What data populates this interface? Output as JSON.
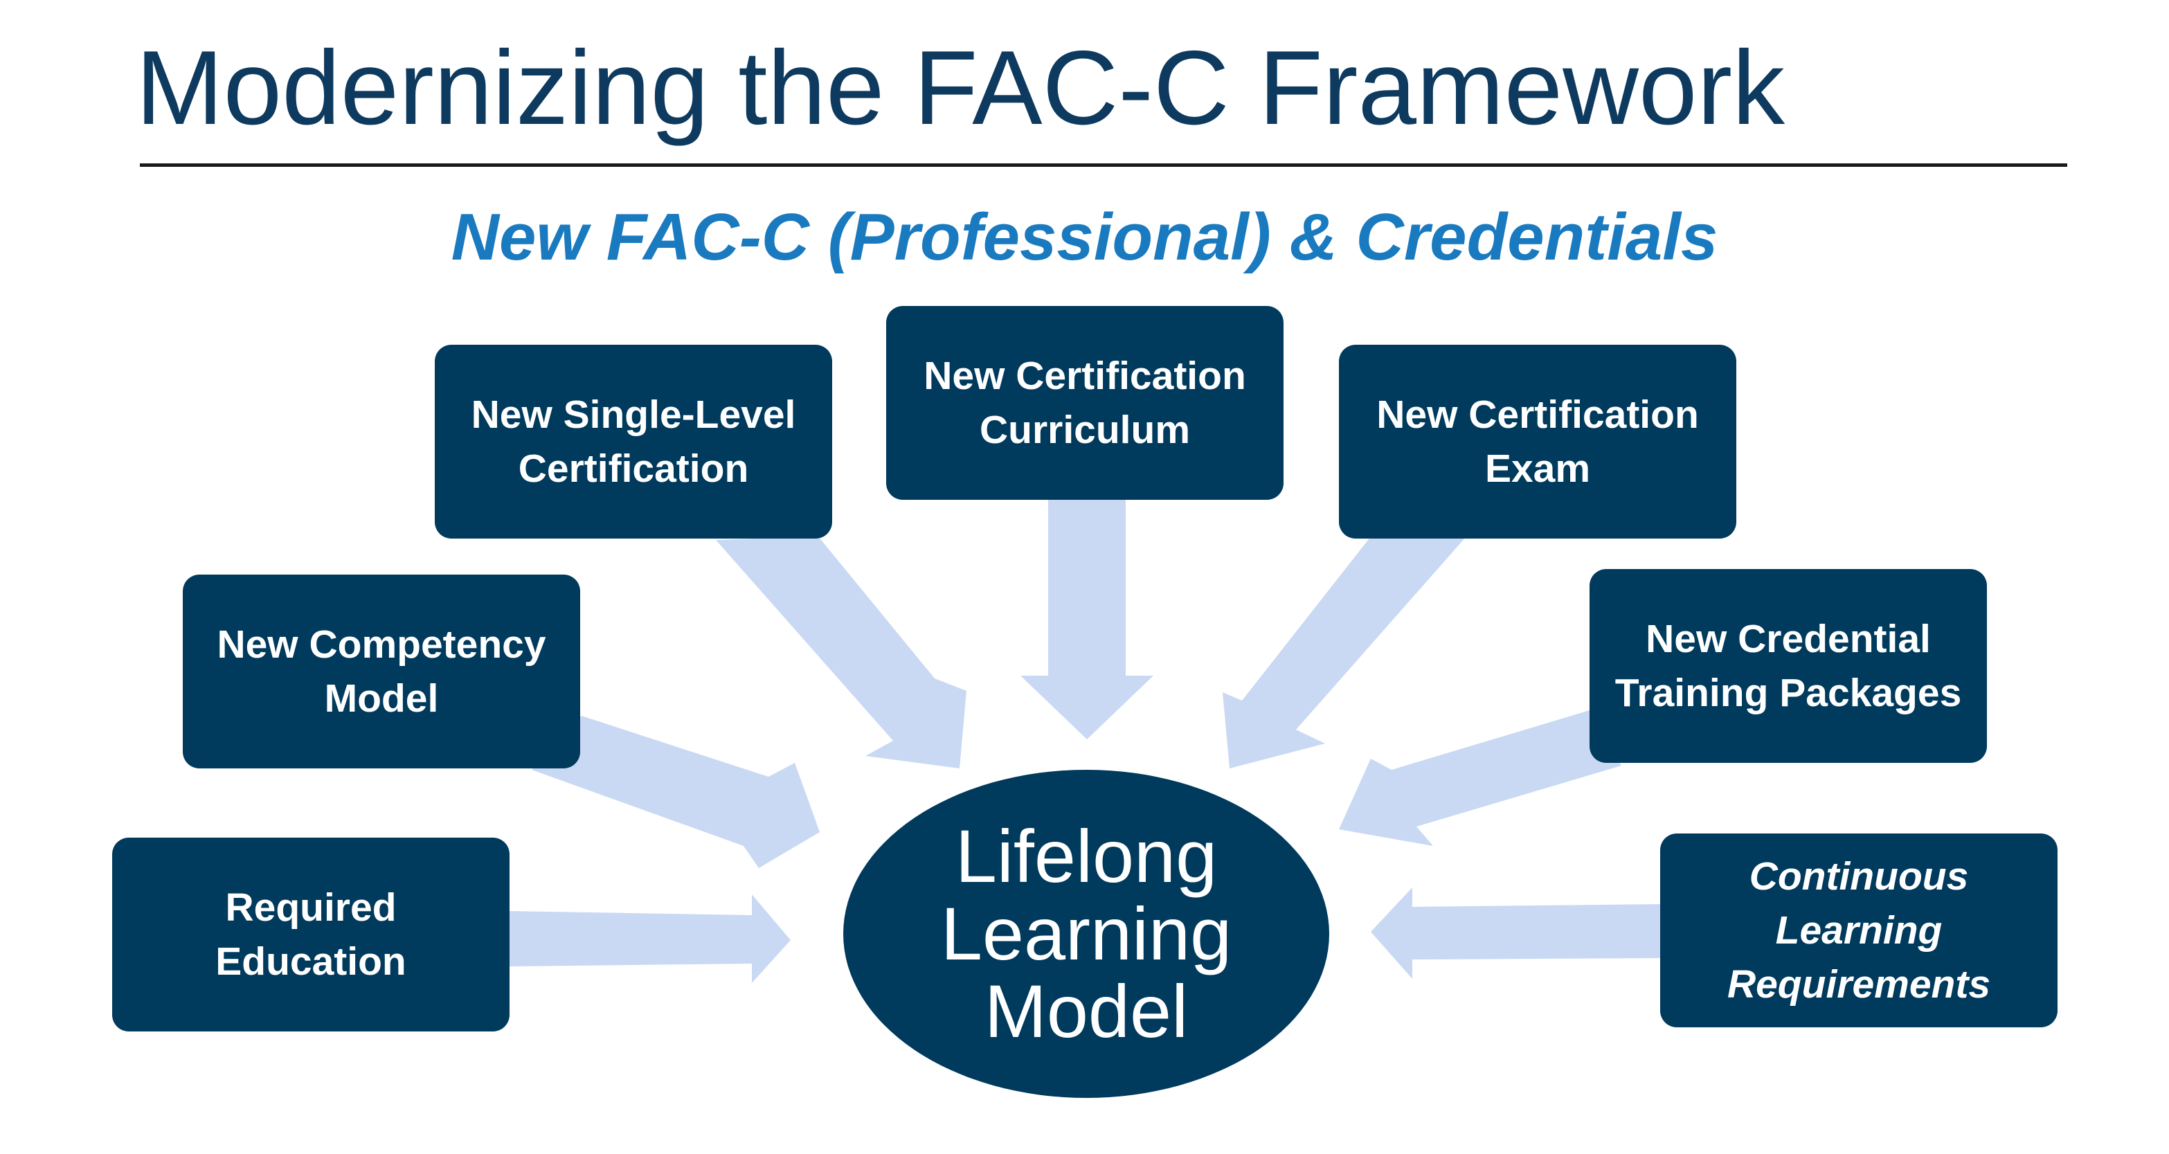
{
  "header": {
    "title": "Modernizing the FAC-C Framework",
    "subtitle": "New FAC-C (Professional) & Credentials"
  },
  "diagram": {
    "center": "Lifelong\nLearning\nModel",
    "nodes": [
      {
        "id": "required-education",
        "label": "Required\nEducation"
      },
      {
        "id": "competency-model",
        "label": "New Competency\nModel"
      },
      {
        "id": "single-level-certification",
        "label": "New Single-Level\nCertification"
      },
      {
        "id": "certification-curriculum",
        "label": "New Certification\nCurriculum"
      },
      {
        "id": "certification-exam",
        "label": "New Certification\nExam"
      },
      {
        "id": "credential-training-packages",
        "label": "New Credential\nTraining Packages"
      },
      {
        "id": "continuous-learning-requirements",
        "label": "Continuous\nLearning\nRequirements"
      }
    ]
  },
  "colors": {
    "box_fill": "#003a5d",
    "title": "#0d3a5e",
    "subtitle": "#1a7abf",
    "arrow": "#c9d9f3"
  }
}
